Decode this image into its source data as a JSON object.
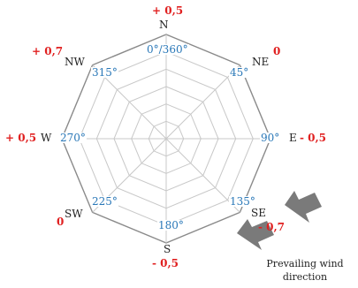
{
  "diagram": {
    "directions": [
      {
        "id": "N",
        "label": "N",
        "degrees": "0°/360°",
        "coefficient": "+ 0,5"
      },
      {
        "id": "NE",
        "label": "NE",
        "degrees": "45°",
        "coefficient": "0"
      },
      {
        "id": "E",
        "label": "E",
        "degrees": "90°",
        "coefficient": "- 0,5"
      },
      {
        "id": "SE",
        "label": "SE",
        "degrees": "135°",
        "coefficient": "- 0,7"
      },
      {
        "id": "S",
        "label": "S",
        "degrees": "180°",
        "coefficient": "- 0,5"
      },
      {
        "id": "SW",
        "label": "SW",
        "degrees": "225°",
        "coefficient": "0"
      },
      {
        "id": "W",
        "label": "W",
        "degrees": "270°",
        "coefficient": "+ 0,5"
      },
      {
        "id": "NW",
        "label": "NW",
        "degrees": "315°",
        "coefficient": "+ 0,7"
      }
    ],
    "prevailing_wind_caption": "Prevailing wind direction",
    "colors": {
      "grid": "#c8c8c8",
      "outline": "#8a8a8a",
      "degree_text": "#2a78b8",
      "coefficient_text": "#e02020",
      "arrow": "#7a7a7a"
    }
  }
}
